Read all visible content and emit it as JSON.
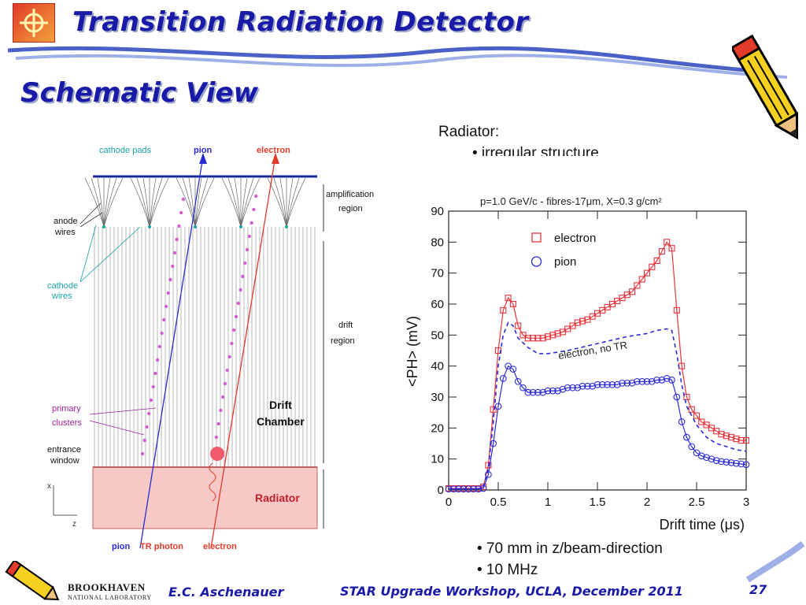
{
  "slide": {
    "title": "Transition Radiation Detector",
    "subtitle": "Schematic View",
    "body": {
      "radiator_heading": "Radiator:",
      "radiator_bullet": "• irregular structure",
      "bullet_z": "• 70 mm in z/beam-direction",
      "bullet_rate": "• 10 MHz"
    },
    "footer": {
      "author": "E.C. Aschenauer",
      "event": "STAR Upgrade Workshop, UCLA, December 2011",
      "page": "27",
      "lab_name": "BROOKHAVEN",
      "lab_sub": "NATIONAL LABORATORY"
    }
  },
  "schematic": {
    "labels": {
      "cathode_pads": "cathode pads",
      "pion_top": "pion",
      "electron_top": "electron",
      "anode_wires_1": "anode",
      "anode_wires_2": "wires",
      "cathode_wires_1": "cathode",
      "cathode_wires_2": "wires",
      "amplification_1": "amplification",
      "amplification_2": "region",
      "drift_1": "drift",
      "drift_2": "region",
      "drift_chamber_1": "Drift",
      "drift_chamber_2": "Chamber",
      "primary_1": "primary",
      "primary_2": "clusters",
      "entrance_1": "entrance",
      "entrance_2": "window",
      "radiator": "Radiator",
      "pion_bottom": "pion",
      "tr_photon": "TR photon",
      "electron_bottom": "electron",
      "axis_x": "x",
      "axis_z": "z"
    },
    "colors": {
      "pion": "#2a2ad0",
      "electron": "#e03a2a",
      "radiator": "#f6c9c6",
      "cathode_label": "#1aa0a8",
      "primary_label": "#a020a0"
    }
  },
  "chart_data": {
    "type": "line",
    "title": "p=1.0 GeV/c - fibres-17μm, X=0.3 g/cm²",
    "xlabel": "Drift time (μs)",
    "ylabel": "<PH> (mV)",
    "xlim": [
      0,
      3
    ],
    "ylim": [
      0,
      90
    ],
    "xticks": [
      "0",
      "0.5",
      "1",
      "1.5",
      "2",
      "2.5",
      "3"
    ],
    "yticks": [
      "0",
      "10",
      "20",
      "30",
      "40",
      "50",
      "60",
      "70",
      "80",
      "90"
    ],
    "legend_position": "top-left",
    "annotation": "electron, no TR",
    "series": [
      {
        "name": "electron",
        "marker": "square",
        "color": "#e8323a",
        "x": [
          0.0,
          0.05,
          0.1,
          0.15,
          0.2,
          0.25,
          0.3,
          0.35,
          0.4,
          0.45,
          0.5,
          0.55,
          0.6,
          0.65,
          0.7,
          0.75,
          0.8,
          0.85,
          0.9,
          0.95,
          1.0,
          1.05,
          1.1,
          1.15,
          1.2,
          1.25,
          1.3,
          1.35,
          1.4,
          1.45,
          1.5,
          1.55,
          1.6,
          1.65,
          1.7,
          1.75,
          1.8,
          1.85,
          1.9,
          1.95,
          2.0,
          2.05,
          2.1,
          2.15,
          2.2,
          2.25,
          2.3,
          2.35,
          2.4,
          2.45,
          2.5,
          2.55,
          2.6,
          2.65,
          2.7,
          2.75,
          2.8,
          2.85,
          2.9,
          2.95,
          3.0
        ],
        "y": [
          0.5,
          0.5,
          0.5,
          0.5,
          0.5,
          0.5,
          0.5,
          1,
          8,
          26,
          45,
          58,
          62,
          60,
          53,
          50,
          49,
          49,
          49,
          49,
          49.5,
          50,
          50.5,
          51,
          52,
          53,
          54,
          54.5,
          55,
          56,
          57,
          58,
          59,
          60,
          61,
          62,
          63,
          64,
          66,
          68,
          70,
          72,
          74,
          77,
          80,
          78,
          58,
          40,
          30,
          26,
          24,
          22,
          21,
          20,
          19,
          18,
          17.5,
          17,
          16.5,
          16,
          16
        ]
      },
      {
        "name": "pion",
        "marker": "circle",
        "color": "#2b2bd8",
        "x": [
          0.0,
          0.05,
          0.1,
          0.15,
          0.2,
          0.25,
          0.3,
          0.35,
          0.4,
          0.45,
          0.5,
          0.55,
          0.6,
          0.65,
          0.7,
          0.75,
          0.8,
          0.85,
          0.9,
          0.95,
          1.0,
          1.05,
          1.1,
          1.15,
          1.2,
          1.25,
          1.3,
          1.35,
          1.4,
          1.45,
          1.5,
          1.55,
          1.6,
          1.65,
          1.7,
          1.75,
          1.8,
          1.85,
          1.9,
          1.95,
          2.0,
          2.05,
          2.1,
          2.15,
          2.2,
          2.25,
          2.3,
          2.35,
          2.4,
          2.45,
          2.5,
          2.55,
          2.6,
          2.65,
          2.7,
          2.75,
          2.8,
          2.85,
          2.9,
          2.95,
          3.0
        ],
        "y": [
          0.3,
          0.3,
          0.3,
          0.3,
          0.3,
          0.3,
          0.3,
          0.5,
          5,
          15,
          27,
          36,
          40,
          39,
          35,
          33,
          31.5,
          31.5,
          31.5,
          31.5,
          32,
          32,
          32,
          32.5,
          33,
          33,
          33,
          33.5,
          33.5,
          33.5,
          34,
          34,
          34,
          34,
          34,
          34.5,
          34.5,
          34.5,
          35,
          35,
          35,
          35,
          35.5,
          35.5,
          36,
          35.5,
          30,
          22,
          17,
          14,
          12,
          11,
          10.5,
          10,
          9.5,
          9.2,
          9,
          8.8,
          8.6,
          8.4,
          8.2
        ]
      },
      {
        "name": "electron, no TR",
        "marker": "dashed",
        "color": "#2b2bd8",
        "x": [
          0.0,
          0.3,
          0.35,
          0.4,
          0.45,
          0.5,
          0.55,
          0.6,
          0.65,
          0.7,
          0.8,
          0.9,
          1.0,
          1.2,
          1.4,
          1.6,
          1.8,
          2.0,
          2.1,
          2.2,
          2.25,
          2.3,
          2.35,
          2.4,
          2.5,
          2.6,
          2.7,
          2.8,
          2.9,
          3.0
        ],
        "y": [
          0.4,
          0.4,
          0.8,
          7,
          22,
          40,
          50,
          54,
          53,
          49,
          46,
          44,
          44,
          45,
          46.5,
          48,
          49.5,
          50.5,
          51.5,
          52,
          51.5,
          44,
          34,
          27,
          21,
          17,
          15,
          14,
          13,
          12.5
        ]
      }
    ]
  }
}
